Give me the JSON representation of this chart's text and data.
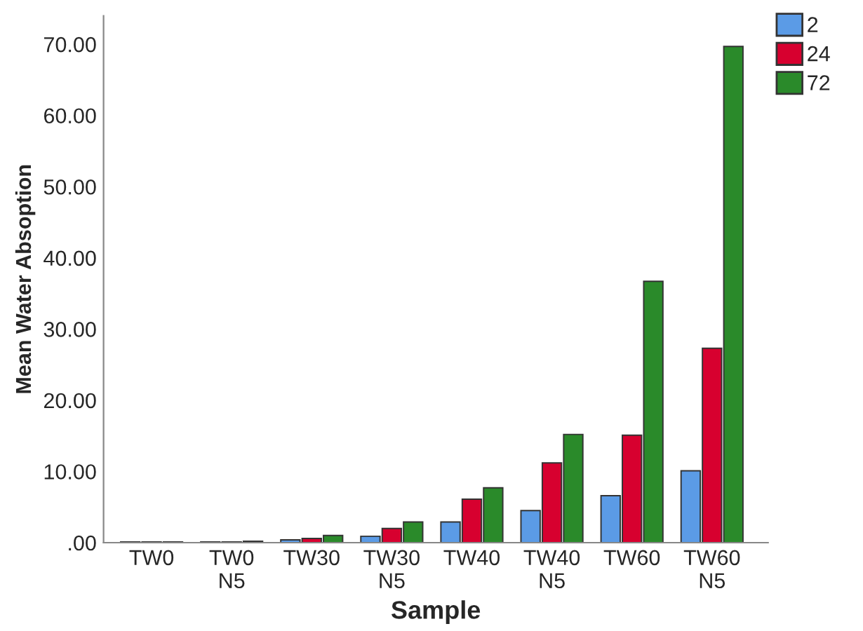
{
  "chart_data": {
    "type": "bar",
    "xlabel": "Sample",
    "ylabel": "Mean Water Absoption",
    "categories": [
      "TW0",
      "TW0\nN5",
      "TW30",
      "TW30\nN5",
      "TW40",
      "TW40\nN5",
      "TW60",
      "TW60\nN5"
    ],
    "series": [
      {
        "name": "2",
        "color": "#5b9be6",
        "values": [
          0.1,
          0.1,
          0.4,
          0.9,
          2.9,
          4.5,
          6.6,
          10.1
        ]
      },
      {
        "name": "24",
        "color": "#d7002f",
        "values": [
          0.1,
          0.1,
          0.6,
          2.0,
          6.1,
          11.2,
          15.1,
          27.3
        ]
      },
      {
        "name": "72",
        "color": "#2a8a2a",
        "values": [
          0.1,
          0.2,
          1.0,
          2.9,
          7.7,
          15.2,
          36.7,
          69.7
        ]
      }
    ],
    "ylim": [
      0,
      74
    ],
    "yticks": [
      {
        "value": 0,
        "label": ".00"
      },
      {
        "value": 10,
        "label": "10.00"
      },
      {
        "value": 20,
        "label": "20.00"
      },
      {
        "value": 30,
        "label": "30.00"
      },
      {
        "value": 40,
        "label": "40.00"
      },
      {
        "value": 50,
        "label": "50.00"
      },
      {
        "value": 60,
        "label": "60.00"
      },
      {
        "value": 70,
        "label": "70.00"
      }
    ],
    "grid": false,
    "legend": "top right"
  }
}
